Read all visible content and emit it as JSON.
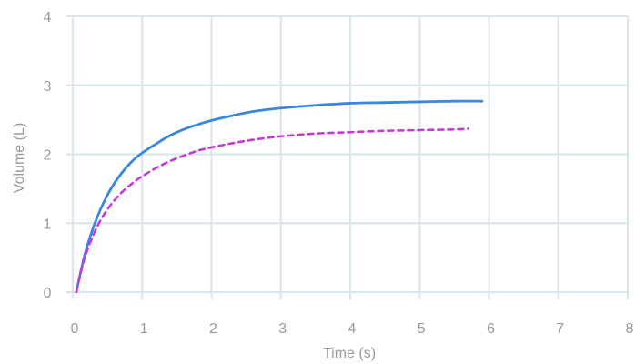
{
  "chart_data": {
    "type": "line",
    "title": "",
    "xlabel": "Time (s)",
    "ylabel": "Volume (L)",
    "xlim": [
      0,
      8
    ],
    "ylim": [
      0,
      4
    ],
    "xticks": [
      "0",
      "1",
      "2",
      "3",
      "4",
      "5",
      "6",
      "7",
      "8"
    ],
    "yticks": [
      "0",
      "1",
      "2",
      "3",
      "4"
    ],
    "grid": true,
    "legend": "none",
    "series": [
      {
        "color": "#3a86e0",
        "style": "solid",
        "x": [
          0.05,
          0.1,
          0.15,
          0.2,
          0.3,
          0.4,
          0.5,
          0.6,
          0.7,
          0.8,
          0.9,
          1.0,
          1.2,
          1.4,
          1.6,
          1.8,
          2.0,
          2.3,
          2.6,
          3.0,
          3.5,
          4.0,
          4.5,
          5.0,
          5.5,
          5.9
        ],
        "values": [
          0.0,
          0.23,
          0.45,
          0.64,
          0.95,
          1.2,
          1.41,
          1.58,
          1.72,
          1.84,
          1.94,
          2.02,
          2.15,
          2.27,
          2.36,
          2.43,
          2.49,
          2.56,
          2.62,
          2.67,
          2.71,
          2.74,
          2.75,
          2.76,
          2.77,
          2.77
        ]
      },
      {
        "color": "#c73ad9",
        "style": "dashed",
        "x": [
          0.05,
          0.1,
          0.15,
          0.2,
          0.3,
          0.4,
          0.5,
          0.6,
          0.7,
          0.8,
          0.9,
          1.0,
          1.2,
          1.4,
          1.6,
          1.8,
          2.0,
          2.3,
          2.6,
          3.0,
          3.5,
          4.0,
          4.5,
          5.0,
          5.5,
          5.7
        ],
        "values": [
          0.0,
          0.22,
          0.42,
          0.58,
          0.84,
          1.04,
          1.2,
          1.33,
          1.44,
          1.53,
          1.61,
          1.68,
          1.8,
          1.9,
          1.98,
          2.05,
          2.1,
          2.16,
          2.21,
          2.26,
          2.3,
          2.32,
          2.34,
          2.35,
          2.36,
          2.37
        ]
      }
    ]
  }
}
